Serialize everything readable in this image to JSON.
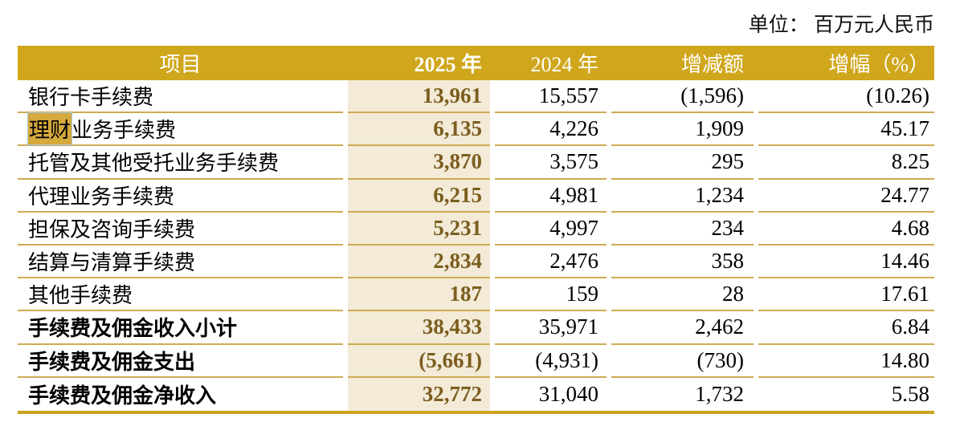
{
  "unit_label": "单位： 百万元人民币",
  "table": {
    "columns": [
      "项目",
      "2025 年",
      "2024 年",
      "增减额",
      "增幅（%）"
    ],
    "rows": [
      {
        "highlight": "",
        "label": "银行卡手续费",
        "y2025": "13,961",
        "y2024": "15,557",
        "change": "(1,596)",
        "pct": "(10.26)",
        "bold": false
      },
      {
        "highlight": "理财",
        "label": "业务手续费",
        "y2025": "6,135",
        "y2024": "4,226",
        "change": "1,909",
        "pct": "45.17",
        "bold": false
      },
      {
        "highlight": "",
        "label": "托管及其他受托业务手续费",
        "y2025": "3,870",
        "y2024": "3,575",
        "change": "295",
        "pct": "8.25",
        "bold": false
      },
      {
        "highlight": "",
        "label": "代理业务手续费",
        "y2025": "6,215",
        "y2024": "4,981",
        "change": "1,234",
        "pct": "24.77",
        "bold": false
      },
      {
        "highlight": "",
        "label": "担保及咨询手续费",
        "y2025": "5,231",
        "y2024": "4,997",
        "change": "234",
        "pct": "4.68",
        "bold": false
      },
      {
        "highlight": "",
        "label": "结算与清算手续费",
        "y2025": "2,834",
        "y2024": "2,476",
        "change": "358",
        "pct": "14.46",
        "bold": false
      },
      {
        "highlight": "",
        "label": "其他手续费",
        "y2025": "187",
        "y2024": "159",
        "change": "28",
        "pct": "17.61",
        "bold": false
      },
      {
        "highlight": "",
        "label": "手续费及佣金收入小计",
        "y2025": "38,433",
        "y2024": "35,971",
        "change": "2,462",
        "pct": "6.84",
        "bold": true
      },
      {
        "highlight": "",
        "label": "手续费及佣金支出",
        "y2025": "(5,661)",
        "y2024": "(4,931)",
        "change": "(730)",
        "pct": "14.80",
        "bold": true
      },
      {
        "highlight": "",
        "label": "手续费及佣金净收入",
        "y2025": "32,772",
        "y2024": "31,040",
        "change": "1,732",
        "pct": "5.58",
        "bold": true
      }
    ]
  },
  "colors": {
    "header_bg": "#D0A71C",
    "header_text": "#FFFFFF",
    "col2025_bg": "#F3EAD7",
    "col2025_text": "#7B5E1E",
    "row_line": "#CDAB52",
    "bottom_line": "#CDA31C",
    "search_highlight_bg": "#D5A93C",
    "search_highlight_border": "#A6C9E9"
  }
}
